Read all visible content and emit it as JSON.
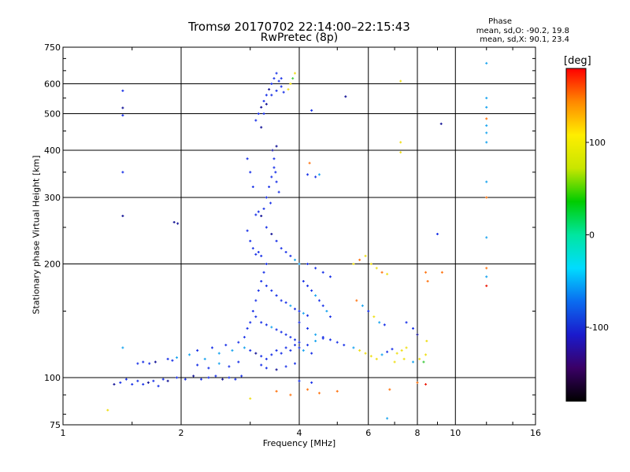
{
  "chart_data": {
    "type": "scatter",
    "title": "Tromsø 20170702 22:14:00–22:15:43",
    "subtitle": "RwPretec (8p)",
    "xlabel": "Frequency [MHz]",
    "ylabel": "Stationary phase Virtual Height [km]",
    "x_scale": "log",
    "y_scale": "log",
    "xlim": [
      1,
      16
    ],
    "ylim": [
      75,
      750
    ],
    "x_ticks": [
      1,
      2,
      4,
      6,
      8,
      10,
      16
    ],
    "x_tick_labels": [
      "1",
      "2",
      "4",
      "6",
      "8",
      "10",
      "16"
    ],
    "y_ticks": [
      75,
      100,
      200,
      300,
      400,
      500,
      600,
      750
    ],
    "y_tick_labels": [
      "75",
      "100",
      "200",
      "300",
      "400",
      "500",
      "600",
      "750"
    ],
    "grid": true,
    "stats": {
      "heading": "Phase",
      "o_line": "mean, sd,O: -90.2, 19.8",
      "x_line": "mean, sd,X:  90.1, 23.4"
    },
    "colorbar": {
      "label": "[deg]",
      "range": [
        -180,
        180
      ],
      "ticks": [
        100,
        0,
        -100
      ],
      "tick_labels": [
        "100",
        "0",
        "-100"
      ],
      "colormap": [
        "#000000",
        "#3a0066",
        "#1a1acc",
        "#0a6cf0",
        "#00dcff",
        "#00e6a0",
        "#00cc00",
        "#c8e600",
        "#ffee00",
        "#ff8800",
        "#ff0000"
      ]
    },
    "point_colors": {
      "blue": "#1e36e8",
      "navy": "#1a1a99",
      "cyan": "#22a8f0",
      "yellow": "#f0e020",
      "orange": "#ff7a1a",
      "red": "#ee2211",
      "green": "#44cc44"
    },
    "points": [
      [
        1.42,
        575,
        "blue"
      ],
      [
        1.42,
        518,
        "navy"
      ],
      [
        1.42,
        495,
        "blue"
      ],
      [
        1.42,
        350,
        "blue"
      ],
      [
        1.42,
        268,
        "navy"
      ],
      [
        1.42,
        120,
        "cyan"
      ],
      [
        1.3,
        82,
        "yellow"
      ],
      [
        1.35,
        96,
        "navy"
      ],
      [
        1.4,
        97,
        "blue"
      ],
      [
        1.45,
        99,
        "blue"
      ],
      [
        1.5,
        96,
        "blue"
      ],
      [
        1.55,
        98,
        "blue"
      ],
      [
        1.6,
        96,
        "blue"
      ],
      [
        1.65,
        97,
        "navy"
      ],
      [
        1.7,
        98,
        "blue"
      ],
      [
        1.75,
        95,
        "blue"
      ],
      [
        1.8,
        99,
        "blue"
      ],
      [
        1.85,
        98,
        "navy"
      ],
      [
        1.55,
        109,
        "blue"
      ],
      [
        1.6,
        110,
        "blue"
      ],
      [
        1.66,
        109,
        "blue"
      ],
      [
        1.72,
        110,
        "navy"
      ],
      [
        1.85,
        112,
        "blue"
      ],
      [
        1.9,
        111,
        "blue"
      ],
      [
        1.95,
        113,
        "cyan"
      ],
      [
        1.95,
        100,
        "blue"
      ],
      [
        2.05,
        99,
        "blue"
      ],
      [
        2.15,
        101,
        "navy"
      ],
      [
        2.25,
        99,
        "blue"
      ],
      [
        2.35,
        100,
        "blue"
      ],
      [
        2.45,
        101,
        "blue"
      ],
      [
        2.55,
        99,
        "navy"
      ],
      [
        2.65,
        100,
        "blue"
      ],
      [
        2.75,
        99,
        "blue"
      ],
      [
        2.85,
        101,
        "blue"
      ],
      [
        1.92,
        258,
        "navy"
      ],
      [
        1.96,
        256,
        "navy"
      ],
      [
        2.1,
        115,
        "cyan"
      ],
      [
        2.2,
        118,
        "blue"
      ],
      [
        2.3,
        112,
        "cyan"
      ],
      [
        2.4,
        120,
        "blue"
      ],
      [
        2.5,
        116,
        "cyan"
      ],
      [
        2.6,
        122,
        "blue"
      ],
      [
        2.7,
        118,
        "cyan"
      ],
      [
        2.8,
        124,
        "blue"
      ],
      [
        2.9,
        120,
        "cyan"
      ],
      [
        2.2,
        108,
        "blue"
      ],
      [
        2.35,
        106,
        "blue"
      ],
      [
        2.5,
        109,
        "cyan"
      ],
      [
        2.65,
        107,
        "blue"
      ],
      [
        2.8,
        110,
        "blue"
      ],
      [
        2.9,
        128,
        "blue"
      ],
      [
        2.95,
        135,
        "blue"
      ],
      [
        3.0,
        140,
        "blue"
      ],
      [
        3.05,
        150,
        "blue"
      ],
      [
        3.1,
        160,
        "blue"
      ],
      [
        3.15,
        170,
        "blue"
      ],
      [
        3.2,
        180,
        "blue"
      ],
      [
        3.25,
        190,
        "blue"
      ],
      [
        3.3,
        200,
        "blue"
      ],
      [
        2.95,
        245,
        "blue"
      ],
      [
        3.0,
        230,
        "blue"
      ],
      [
        3.05,
        220,
        "blue"
      ],
      [
        3.1,
        212,
        "blue"
      ],
      [
        3.15,
        215,
        "blue"
      ],
      [
        3.2,
        210,
        "blue"
      ],
      [
        2.95,
        380,
        "blue"
      ],
      [
        3.0,
        350,
        "blue"
      ],
      [
        3.05,
        320,
        "blue"
      ],
      [
        3.1,
        270,
        "blue"
      ],
      [
        3.15,
        275,
        "blue"
      ],
      [
        3.2,
        268,
        "navy"
      ],
      [
        3.25,
        280,
        "blue"
      ],
      [
        3.3,
        300,
        "blue"
      ],
      [
        3.35,
        320,
        "blue"
      ],
      [
        3.4,
        340,
        "blue"
      ],
      [
        3.45,
        360,
        "blue"
      ],
      [
        3.5,
        330,
        "blue"
      ],
      [
        3.55,
        310,
        "blue"
      ],
      [
        3.38,
        290,
        "blue"
      ],
      [
        3.48,
        350,
        "blue"
      ],
      [
        3.42,
        400,
        "navy"
      ],
      [
        3.5,
        410,
        "navy"
      ],
      [
        3.45,
        380,
        "blue"
      ],
      [
        3.1,
        480,
        "blue"
      ],
      [
        3.15,
        500,
        "blue"
      ],
      [
        3.2,
        520,
        "navy"
      ],
      [
        3.25,
        540,
        "blue"
      ],
      [
        3.3,
        560,
        "blue"
      ],
      [
        3.35,
        580,
        "navy"
      ],
      [
        3.4,
        600,
        "blue"
      ],
      [
        3.45,
        620,
        "blue"
      ],
      [
        3.5,
        640,
        "blue"
      ],
      [
        3.55,
        610,
        "blue"
      ],
      [
        3.6,
        590,
        "blue"
      ],
      [
        3.65,
        570,
        "blue"
      ],
      [
        3.2,
        460,
        "navy"
      ],
      [
        3.25,
        500,
        "blue"
      ],
      [
        3.3,
        530,
        "navy"
      ],
      [
        3.4,
        560,
        "blue"
      ],
      [
        3.5,
        575,
        "blue"
      ],
      [
        3.6,
        620,
        "blue"
      ],
      [
        3.75,
        580,
        "yellow"
      ],
      [
        3.8,
        600,
        "yellow"
      ],
      [
        3.85,
        620,
        "green"
      ],
      [
        3.9,
        640,
        "yellow"
      ],
      [
        3.3,
        250,
        "blue"
      ],
      [
        3.4,
        240,
        "navy"
      ],
      [
        3.5,
        230,
        "blue"
      ],
      [
        3.6,
        220,
        "blue"
      ],
      [
        3.7,
        215,
        "blue"
      ],
      [
        3.8,
        210,
        "blue"
      ],
      [
        3.9,
        205,
        "cyan"
      ],
      [
        4.0,
        200,
        "cyan"
      ],
      [
        3.3,
        175,
        "blue"
      ],
      [
        3.4,
        170,
        "blue"
      ],
      [
        3.5,
        165,
        "blue"
      ],
      [
        3.6,
        160,
        "blue"
      ],
      [
        3.7,
        158,
        "blue"
      ],
      [
        3.8,
        155,
        "cyan"
      ],
      [
        3.9,
        152,
        "blue"
      ],
      [
        4.0,
        150,
        "blue"
      ],
      [
        4.1,
        148,
        "cyan"
      ],
      [
        4.2,
        146,
        "blue"
      ],
      [
        3.1,
        145,
        "blue"
      ],
      [
        3.2,
        140,
        "blue"
      ],
      [
        3.3,
        138,
        "blue"
      ],
      [
        3.4,
        136,
        "cyan"
      ],
      [
        3.5,
        134,
        "blue"
      ],
      [
        3.6,
        132,
        "blue"
      ],
      [
        3.7,
        130,
        "blue"
      ],
      [
        3.8,
        128,
        "blue"
      ],
      [
        3.9,
        126,
        "blue"
      ],
      [
        4.0,
        124,
        "blue"
      ],
      [
        4.2,
        122,
        "blue"
      ],
      [
        4.4,
        125,
        "cyan"
      ],
      [
        4.6,
        127,
        "blue"
      ],
      [
        3.0,
        118,
        "blue"
      ],
      [
        3.1,
        116,
        "navy"
      ],
      [
        3.2,
        114,
        "blue"
      ],
      [
        3.3,
        112,
        "blue"
      ],
      [
        3.4,
        115,
        "blue"
      ],
      [
        3.5,
        118,
        "blue"
      ],
      [
        3.6,
        116,
        "blue"
      ],
      [
        3.7,
        120,
        "blue"
      ],
      [
        3.8,
        118,
        "blue"
      ],
      [
        3.9,
        122,
        "blue"
      ],
      [
        4.0,
        120,
        "blue"
      ],
      [
        4.1,
        118,
        "cyan"
      ],
      [
        4.3,
        116,
        "blue"
      ],
      [
        3.2,
        108,
        "blue"
      ],
      [
        3.3,
        106,
        "blue"
      ],
      [
        3.5,
        105,
        "navy"
      ],
      [
        3.7,
        107,
        "blue"
      ],
      [
        3.9,
        109,
        "blue"
      ],
      [
        4.1,
        180,
        "blue"
      ],
      [
        4.2,
        175,
        "blue"
      ],
      [
        4.3,
        170,
        "blue"
      ],
      [
        4.4,
        165,
        "cyan"
      ],
      [
        4.5,
        160,
        "blue"
      ],
      [
        4.6,
        155,
        "blue"
      ],
      [
        4.7,
        150,
        "cyan"
      ],
      [
        4.8,
        145,
        "blue"
      ],
      [
        4.0,
        140,
        "blue"
      ],
      [
        4.2,
        135,
        "blue"
      ],
      [
        4.4,
        130,
        "cyan"
      ],
      [
        4.6,
        128,
        "blue"
      ],
      [
        4.8,
        126,
        "blue"
      ],
      [
        5.0,
        124,
        "blue"
      ],
      [
        5.2,
        122,
        "blue"
      ],
      [
        4.4,
        340,
        "blue"
      ],
      [
        4.5,
        345,
        "cyan"
      ],
      [
        4.25,
        370,
        "orange"
      ],
      [
        4.2,
        345,
        "blue"
      ],
      [
        4.3,
        510,
        "blue"
      ],
      [
        5.25,
        555,
        "navy"
      ],
      [
        4.2,
        200,
        "blue"
      ],
      [
        4.4,
        195,
        "blue"
      ],
      [
        4.6,
        190,
        "blue"
      ],
      [
        4.8,
        185,
        "blue"
      ],
      [
        5.5,
        200,
        "yellow"
      ],
      [
        5.7,
        205,
        "orange"
      ],
      [
        5.9,
        210,
        "yellow"
      ],
      [
        6.1,
        200,
        "yellow"
      ],
      [
        6.3,
        195,
        "yellow"
      ],
      [
        6.5,
        190,
        "orange"
      ],
      [
        6.7,
        188,
        "yellow"
      ],
      [
        5.6,
        160,
        "orange"
      ],
      [
        5.8,
        155,
        "cyan"
      ],
      [
        6.0,
        150,
        "blue"
      ],
      [
        6.2,
        145,
        "yellow"
      ],
      [
        6.4,
        140,
        "cyan"
      ],
      [
        6.6,
        138,
        "blue"
      ],
      [
        5.5,
        120,
        "cyan"
      ],
      [
        5.7,
        118,
        "yellow"
      ],
      [
        5.9,
        116,
        "yellow"
      ],
      [
        6.1,
        114,
        "yellow"
      ],
      [
        6.3,
        112,
        "yellow"
      ],
      [
        6.5,
        115,
        "cyan"
      ],
      [
        6.7,
        117,
        "blue"
      ],
      [
        6.9,
        119,
        "blue"
      ],
      [
        7.1,
        116,
        "yellow"
      ],
      [
        7.3,
        118,
        "yellow"
      ],
      [
        7.5,
        120,
        "yellow"
      ],
      [
        7.0,
        110,
        "yellow"
      ],
      [
        7.4,
        112,
        "yellow"
      ],
      [
        7.8,
        110,
        "cyan"
      ],
      [
        8.1,
        112,
        "yellow"
      ],
      [
        8.3,
        110,
        "green"
      ],
      [
        8.4,
        115,
        "yellow"
      ],
      [
        8.45,
        125,
        "yellow"
      ],
      [
        7.25,
        610,
        "yellow"
      ],
      [
        7.25,
        420,
        "yellow"
      ],
      [
        7.25,
        395,
        "yellow"
      ],
      [
        7.5,
        140,
        "blue"
      ],
      [
        7.8,
        135,
        "blue"
      ],
      [
        8.0,
        130,
        "navy"
      ],
      [
        8.4,
        190,
        "orange"
      ],
      [
        8.5,
        180,
        "orange"
      ],
      [
        9.2,
        470,
        "navy"
      ],
      [
        9.0,
        240,
        "blue"
      ],
      [
        9.25,
        190,
        "orange"
      ],
      [
        12.0,
        680,
        "cyan"
      ],
      [
        12.0,
        550,
        "cyan"
      ],
      [
        12.0,
        520,
        "cyan"
      ],
      [
        12.0,
        485,
        "orange"
      ],
      [
        12.0,
        465,
        "cyan"
      ],
      [
        12.0,
        445,
        "cyan"
      ],
      [
        12.0,
        420,
        "cyan"
      ],
      [
        12.0,
        330,
        "cyan"
      ],
      [
        12.0,
        300,
        "orange"
      ],
      [
        12.0,
        235,
        "cyan"
      ],
      [
        12.0,
        195,
        "orange"
      ],
      [
        12.0,
        185,
        "cyan"
      ],
      [
        12.0,
        175,
        "red"
      ],
      [
        3.5,
        92,
        "orange"
      ],
      [
        3.8,
        90,
        "orange"
      ],
      [
        4.2,
        93,
        "orange"
      ],
      [
        4.5,
        91,
        "orange"
      ],
      [
        5.0,
        92,
        "orange"
      ],
      [
        6.8,
        93,
        "orange"
      ],
      [
        8.0,
        97,
        "orange"
      ],
      [
        8.4,
        96,
        "red"
      ],
      [
        3.0,
        88,
        "yellow"
      ],
      [
        4.0,
        98,
        "blue"
      ],
      [
        4.3,
        97,
        "blue"
      ],
      [
        6.7,
        78,
        "cyan"
      ]
    ]
  }
}
